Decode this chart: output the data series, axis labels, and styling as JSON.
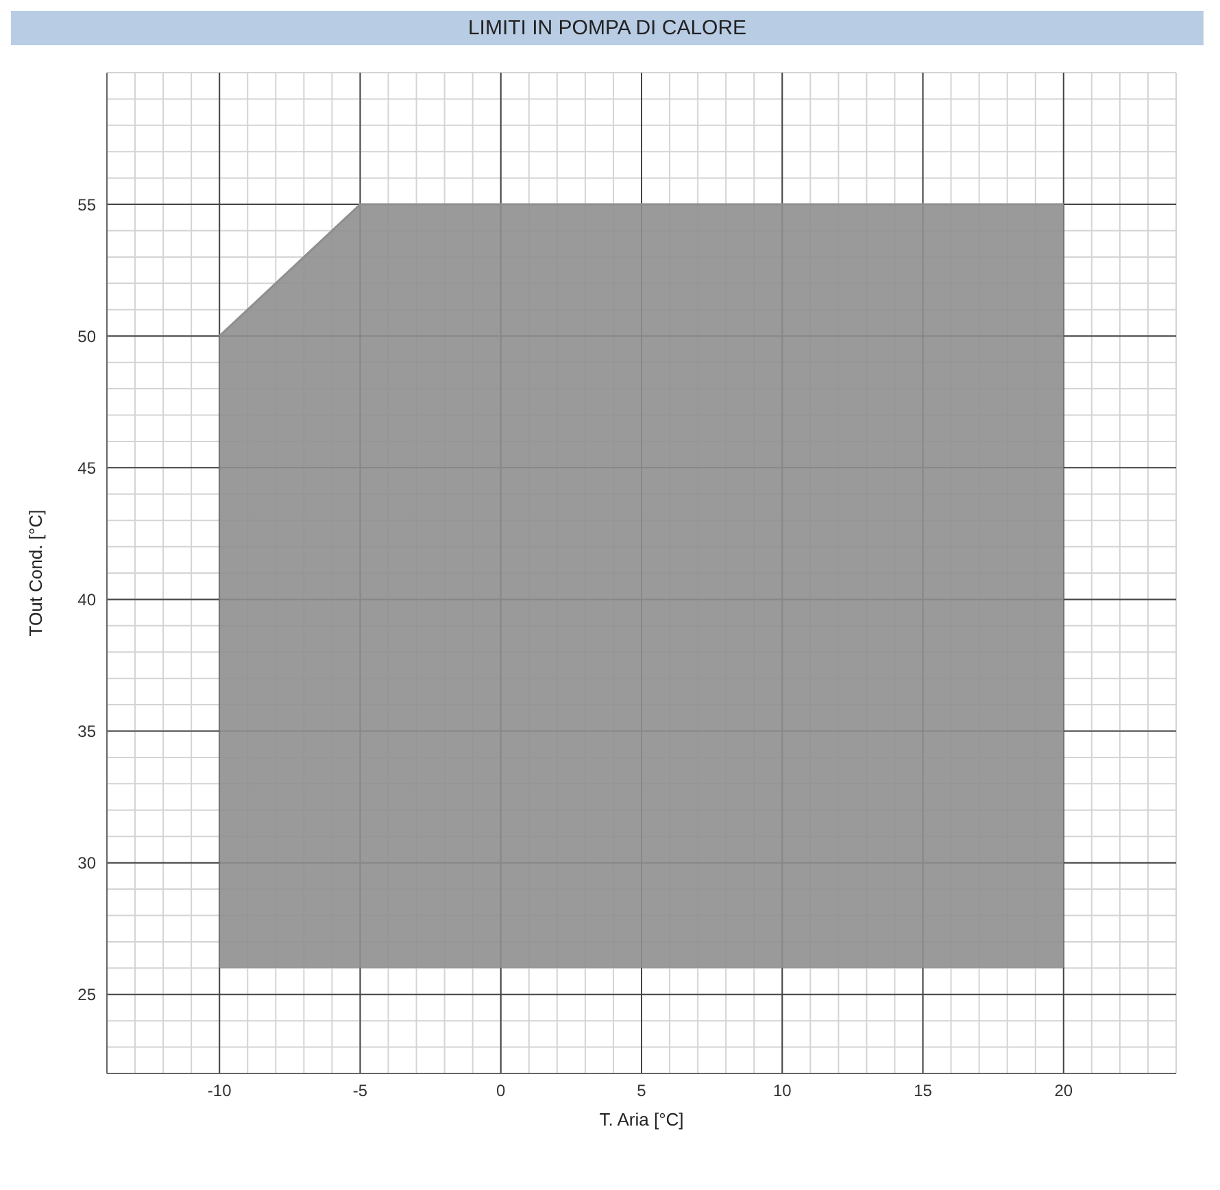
{
  "chart_data": {
    "type": "line",
    "title": "LIMITI IN POMPA DI CALORE",
    "xlabel": "T. Aria [°C]",
    "ylabel": "TOut Cond. [°C]",
    "x": [
      -10,
      -5,
      20
    ],
    "series": [
      {
        "color": "#8f8f8f",
        "values": [
          50,
          55,
          55
        ],
        "lower": [
          26,
          26,
          26
        ],
        "upper": [
          50,
          55,
          55
        ]
      }
    ],
    "xlim": [
      -14,
      24
    ],
    "xticks": [
      {
        "value": -14,
        "label": null
      },
      {
        "value": -13,
        "label": null
      },
      {
        "value": -12,
        "label": null
      },
      {
        "value": -11,
        "label": null
      },
      -10,
      {
        "value": -9,
        "label": null
      },
      {
        "value": -8,
        "label": null
      },
      {
        "value": -7,
        "label": null
      },
      {
        "value": -6,
        "label": null
      },
      -5,
      {
        "value": -4,
        "label": null
      },
      {
        "value": -3,
        "label": null
      },
      {
        "value": -2,
        "label": null
      },
      {
        "value": -1,
        "label": null
      },
      0,
      {
        "value": 1,
        "label": null
      },
      {
        "value": 2,
        "label": null
      },
      {
        "value": 3,
        "label": null
      },
      {
        "value": 4,
        "label": null
      },
      5,
      {
        "value": 6,
        "label": null
      },
      {
        "value": 7,
        "label": null
      },
      {
        "value": 8,
        "label": null
      },
      {
        "value": 9,
        "label": null
      },
      10,
      {
        "value": 11,
        "label": null
      },
      {
        "value": 12,
        "label": null
      },
      {
        "value": 13,
        "label": null
      },
      {
        "value": 14,
        "label": null
      },
      15,
      {
        "value": 16,
        "label": null
      },
      {
        "value": 17,
        "label": null
      },
      {
        "value": 18,
        "label": null
      },
      {
        "value": 19,
        "label": null
      },
      20,
      {
        "value": 21,
        "label": null
      },
      {
        "value": 22,
        "label": null
      },
      {
        "value": 23,
        "label": null
      },
      {
        "value": 24,
        "label": null
      }
    ],
    "ylim": [
      22,
      60
    ],
    "yticks": [
      {
        "value": 22,
        "label": null
      },
      {
        "value": 23,
        "label": null
      },
      {
        "value": 24,
        "label": null
      },
      25,
      {
        "value": 26,
        "label": null
      },
      {
        "value": 27,
        "label": null
      },
      {
        "value": 28,
        "label": null
      },
      {
        "value": 29,
        "label": null
      },
      30,
      {
        "value": 31,
        "label": null
      },
      {
        "value": 32,
        "label": null
      },
      {
        "value": 33,
        "label": null
      },
      {
        "value": 34,
        "label": null
      },
      35,
      {
        "value": 36,
        "label": null
      },
      {
        "value": 37,
        "label": null
      },
      {
        "value": 38,
        "label": null
      },
      {
        "value": 39,
        "label": null
      },
      40,
      {
        "value": 41,
        "label": null
      },
      {
        "value": 42,
        "label": null
      },
      {
        "value": 43,
        "label": null
      },
      {
        "value": 44,
        "label": null
      },
      45,
      {
        "value": 46,
        "label": null
      },
      {
        "value": 47,
        "label": null
      },
      {
        "value": 48,
        "label": null
      },
      {
        "value": 49,
        "label": null
      },
      50,
      {
        "value": 51,
        "label": null
      },
      {
        "value": 52,
        "label": null
      },
      {
        "value": 53,
        "label": null
      },
      {
        "value": 54,
        "label": null
      },
      55,
      {
        "value": 56,
        "label": null
      },
      {
        "value": 57,
        "label": null
      },
      {
        "value": 58,
        "label": null
      },
      {
        "value": 59,
        "label": null
      },
      {
        "value": 60,
        "label": null
      }
    ],
    "grid": true,
    "legend": false
  }
}
